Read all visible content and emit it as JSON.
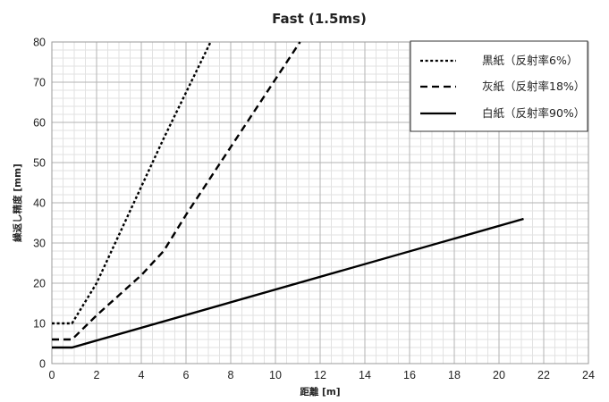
{
  "chart_data": {
    "type": "line",
    "title": "Fast (1.5ms)",
    "xlabel": "距離 [m]",
    "ylabel": "繰返し精度 [mm]",
    "xlim": [
      0,
      24
    ],
    "ylim": [
      0,
      80
    ],
    "x_ticks": [
      0,
      2,
      4,
      6,
      8,
      10,
      12,
      14,
      16,
      18,
      20,
      22,
      24
    ],
    "y_ticks": [
      0,
      10,
      20,
      30,
      40,
      50,
      60,
      70,
      80
    ],
    "grid": true,
    "legend_position": "top-right",
    "series": [
      {
        "name": "黒紙（反射率6%）",
        "line_style": "dotted",
        "color": "#000000",
        "points": [
          [
            0,
            10
          ],
          [
            0.9,
            10
          ],
          [
            2,
            20
          ],
          [
            4,
            44
          ],
          [
            5,
            56
          ],
          [
            7.1,
            80
          ]
        ]
      },
      {
        "name": "灰紙（反射率18%）",
        "line_style": "dashed",
        "color": "#000000",
        "points": [
          [
            0,
            6
          ],
          [
            0.9,
            6
          ],
          [
            2,
            12
          ],
          [
            4,
            22
          ],
          [
            5,
            28
          ],
          [
            6,
            37
          ],
          [
            11.1,
            80
          ]
        ]
      },
      {
        "name": "白紙（反射率90%）",
        "line_style": "solid",
        "color": "#000000",
        "points": [
          [
            0,
            4
          ],
          [
            0.9,
            4
          ],
          [
            21.1,
            36
          ]
        ]
      }
    ]
  }
}
